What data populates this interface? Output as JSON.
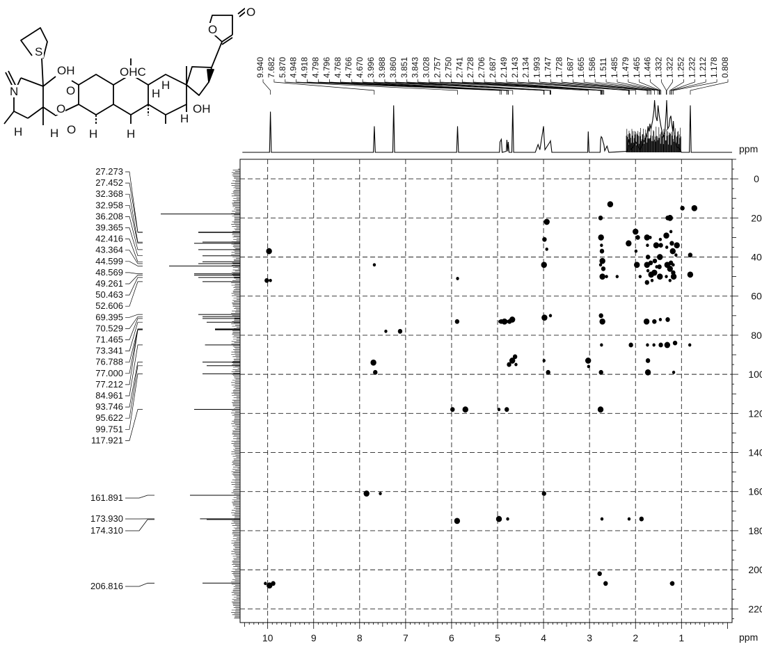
{
  "structure": {
    "labels": [
      "O",
      "O",
      "S",
      "N",
      "OH",
      "O",
      "OHC",
      "H",
      "O",
      "O",
      "H",
      "H",
      "H",
      "H",
      "H",
      "OH",
      "H"
    ]
  },
  "chart_data": {
    "type": "scatter",
    "title": "",
    "xlabel": "ppm",
    "ylabel": "ppm",
    "x_axis": {
      "range": [
        10.6,
        -0.1
      ],
      "ticks": [
        10,
        9,
        8,
        7,
        6,
        5,
        4,
        3,
        2,
        1
      ],
      "unit": "ppm"
    },
    "y_axis": {
      "range": [
        -10,
        227
      ],
      "ticks": [
        0,
        20,
        40,
        60,
        80,
        100,
        120,
        140,
        160,
        180,
        200,
        220
      ],
      "unit": "ppm"
    },
    "grid": "dashed",
    "h1_peak_labels": [
      "9.940",
      "7.682",
      "5.870",
      "4.948",
      "4.918",
      "4.798",
      "4.796",
      "4.768",
      "4.766",
      "4.670",
      "3.996",
      "3.988",
      "3.860",
      "3.851",
      "3.843",
      "3.028",
      "2.757",
      "2.750",
      "2.741",
      "2.728",
      "2.706",
      "2.687",
      "2.149",
      "2.143",
      "2.134",
      "1.993",
      "1.747",
      "1.728",
      "1.687",
      "1.665",
      "1.586",
      "1.511",
      "1.485",
      "1.479",
      "1.465",
      "1.446",
      "1.332",
      "1.322",
      "1.252",
      "1.232",
      "1.212",
      "1.178",
      "0.808"
    ],
    "c13_peak_labels": [
      "27.273",
      "27.452",
      "32.368",
      "32.958",
      "36.208",
      "39.365",
      "42.416",
      "43.364",
      "44.599",
      "48.569",
      "49.261",
      "50.463",
      "52.606",
      "69.395",
      "70.529",
      "71.465",
      "73.341",
      "76.788",
      "77.000",
      "77.212",
      "84.961",
      "93.746",
      "95.622",
      "99.751",
      "117.921",
      "161.891",
      "173.930",
      "174.310",
      "206.816"
    ],
    "h1_trace": [
      [
        10.55,
        0
      ],
      [
        9.96,
        0
      ],
      [
        9.94,
        0.78
      ],
      [
        9.92,
        0
      ],
      [
        7.7,
        0
      ],
      [
        7.68,
        0.5
      ],
      [
        7.66,
        0
      ],
      [
        7.28,
        0
      ],
      [
        7.26,
        0.9
      ],
      [
        7.24,
        0
      ],
      [
        5.89,
        0
      ],
      [
        5.87,
        0.5
      ],
      [
        5.85,
        0
      ],
      [
        4.96,
        0
      ],
      [
        4.948,
        0.2
      ],
      [
        4.918,
        0.25
      ],
      [
        4.9,
        0
      ],
      [
        4.81,
        0.02
      ],
      [
        4.797,
        0.24
      ],
      [
        4.78,
        0.02
      ],
      [
        4.767,
        0.2
      ],
      [
        4.75,
        0
      ],
      [
        4.69,
        0
      ],
      [
        4.67,
        0.9
      ],
      [
        4.65,
        0
      ],
      [
        4.18,
        0
      ],
      [
        4.12,
        0.15
      ],
      [
        4.08,
        0.05
      ],
      [
        4.0,
        0.5
      ],
      [
        3.99,
        0.3
      ],
      [
        3.97,
        0.05
      ],
      [
        3.86,
        0.2
      ],
      [
        3.85,
        0.22
      ],
      [
        3.84,
        0.15
      ],
      [
        3.82,
        0
      ],
      [
        3.04,
        0
      ],
      [
        3.028,
        0.4
      ],
      [
        3.01,
        0
      ],
      [
        2.77,
        0
      ],
      [
        2.757,
        0.25
      ],
      [
        2.745,
        0.3
      ],
      [
        2.728,
        0.28
      ],
      [
        2.706,
        0.2
      ],
      [
        2.687,
        0.15
      ],
      [
        2.67,
        0.03
      ],
      [
        2.62,
        0.12
      ],
      [
        2.58,
        0
      ],
      [
        2.18,
        0.02
      ],
      [
        2.149,
        0.25
      ],
      [
        2.134,
        0.2
      ],
      [
        2.1,
        0.05
      ],
      [
        2.05,
        0.1
      ],
      [
        1.993,
        0.2
      ],
      [
        1.95,
        0.12
      ],
      [
        1.9,
        0.05
      ],
      [
        1.85,
        0.15
      ],
      [
        1.8,
        0.25
      ],
      [
        1.76,
        0.3
      ],
      [
        1.747,
        0.35
      ],
      [
        1.728,
        0.5
      ],
      [
        1.7,
        0.4
      ],
      [
        1.687,
        0.55
      ],
      [
        1.665,
        0.45
      ],
      [
        1.63,
        0.6
      ],
      [
        1.6,
        0.8
      ],
      [
        1.586,
        1.0
      ],
      [
        1.56,
        0.7
      ],
      [
        1.53,
        0.6
      ],
      [
        1.511,
        0.9
      ],
      [
        1.485,
        0.7
      ],
      [
        1.465,
        0.6
      ],
      [
        1.446,
        0.5
      ],
      [
        1.4,
        0.3
      ],
      [
        1.36,
        0.4
      ],
      [
        1.332,
        0.8
      ],
      [
        1.322,
        1.0
      ],
      [
        1.3,
        0.45
      ],
      [
        1.27,
        0.5
      ],
      [
        1.252,
        0.65
      ],
      [
        1.232,
        0.7
      ],
      [
        1.212,
        0.55
      ],
      [
        1.19,
        0.4
      ],
      [
        1.178,
        0.6
      ],
      [
        1.15,
        0.25
      ],
      [
        1.1,
        0.1
      ],
      [
        1.05,
        0.08
      ],
      [
        1.0,
        0
      ],
      [
        0.83,
        0
      ],
      [
        0.808,
        0.9
      ],
      [
        0.79,
        0
      ],
      [
        -0.1,
        0
      ]
    ],
    "c13_peaks": [
      [
        206.816,
        0.45
      ],
      [
        174.31,
        0.4
      ],
      [
        173.93,
        0.48
      ],
      [
        161.891,
        0.6
      ],
      [
        117.921,
        0.55
      ],
      [
        99.751,
        0.45
      ],
      [
        95.622,
        0.4
      ],
      [
        93.746,
        0.45
      ],
      [
        84.961,
        0.42
      ],
      [
        77.212,
        0.3
      ],
      [
        77.0,
        0.3
      ],
      [
        76.788,
        0.3
      ],
      [
        73.341,
        0.4
      ],
      [
        71.465,
        0.45
      ],
      [
        70.529,
        0.45
      ],
      [
        69.395,
        0.5
      ],
      [
        52.606,
        0.45
      ],
      [
        50.463,
        0.5
      ],
      [
        49.261,
        0.55
      ],
      [
        48.569,
        0.55
      ],
      [
        44.599,
        0.85
      ],
      [
        43.364,
        0.5
      ],
      [
        42.416,
        0.45
      ],
      [
        39.365,
        0.45
      ],
      [
        36.208,
        0.5
      ],
      [
        32.958,
        0.55
      ],
      [
        32.368,
        0.45
      ],
      [
        27.452,
        0.5
      ],
      [
        27.273,
        0.5
      ],
      [
        18.0,
        0.95
      ]
    ],
    "series": [
      {
        "points": [
          [
            9.94,
            52
          ],
          [
            10.02,
            52
          ],
          [
            9.97,
            37
          ],
          [
            10.05,
            207
          ],
          [
            9.88,
            207
          ],
          [
            9.96,
            208
          ],
          [
            7.68,
            44
          ],
          [
            7.66,
            99
          ],
          [
            7.7,
            94
          ],
          [
            7.43,
            78
          ],
          [
            7.12,
            78
          ],
          [
            7.85,
            161
          ],
          [
            7.55,
            161
          ],
          [
            5.88,
            73
          ],
          [
            5.88,
            175
          ],
          [
            5.87,
            51
          ],
          [
            5.98,
            118
          ],
          [
            5.7,
            118
          ],
          [
            4.95,
            73
          ],
          [
            4.92,
            73
          ],
          [
            4.85,
            73
          ],
          [
            4.8,
            73
          ],
          [
            4.74,
            73
          ],
          [
            4.68,
            72
          ],
          [
            4.97,
            118
          ],
          [
            4.8,
            118
          ],
          [
            4.97,
            174
          ],
          [
            4.78,
            174
          ],
          [
            4.75,
            95
          ],
          [
            4.68,
            93
          ],
          [
            4.6,
            95
          ],
          [
            4.62,
            91
          ],
          [
            3.99,
            44
          ],
          [
            3.99,
            93
          ],
          [
            3.99,
            161
          ],
          [
            3.93,
            22
          ],
          [
            3.93,
            36
          ],
          [
            3.98,
            31
          ],
          [
            3.98,
            71
          ],
          [
            3.85,
            70
          ],
          [
            3.9,
            99
          ],
          [
            3.03,
            93
          ],
          [
            3.02,
            96
          ],
          [
            2.76,
            20
          ],
          [
            2.75,
            30
          ],
          [
            2.74,
            34
          ],
          [
            2.73,
            37
          ],
          [
            2.72,
            42
          ],
          [
            2.76,
            44
          ],
          [
            2.7,
            46
          ],
          [
            2.72,
            50
          ],
          [
            2.63,
            50
          ],
          [
            2.75,
            70
          ],
          [
            2.72,
            73
          ],
          [
            2.74,
            85
          ],
          [
            2.75,
            99
          ],
          [
            2.76,
            118
          ],
          [
            2.73,
            174
          ],
          [
            2.65,
            207
          ],
          [
            2.55,
            13
          ],
          [
            2.4,
            50
          ],
          [
            2.78,
            202
          ],
          [
            2.15,
            33
          ],
          [
            2.14,
            174
          ],
          [
            2.1,
            85
          ],
          [
            2.0,
            27
          ],
          [
            1.99,
            37
          ],
          [
            1.95,
            30
          ],
          [
            1.97,
            44
          ],
          [
            1.9,
            50
          ],
          [
            1.87,
            174
          ],
          [
            1.75,
            30
          ],
          [
            1.74,
            34
          ],
          [
            1.73,
            40
          ],
          [
            1.75,
            44
          ],
          [
            1.73,
            47
          ],
          [
            1.75,
            53
          ],
          [
            1.76,
            73
          ],
          [
            1.74,
            85
          ],
          [
            1.73,
            93
          ],
          [
            1.73,
            99
          ],
          [
            1.68,
            30
          ],
          [
            1.67,
            43
          ],
          [
            1.66,
            49
          ],
          [
            1.64,
            52
          ],
          [
            1.58,
            42
          ],
          [
            1.59,
            48
          ],
          [
            1.6,
            85
          ],
          [
            1.59,
            73
          ],
          [
            1.55,
            34
          ],
          [
            1.54,
            45
          ],
          [
            1.48,
            45
          ],
          [
            1.47,
            40
          ],
          [
            1.46,
            31
          ],
          [
            1.45,
            34
          ],
          [
            1.47,
            50
          ],
          [
            1.46,
            72
          ],
          [
            1.45,
            85
          ],
          [
            1.33,
            29
          ],
          [
            1.32,
            35
          ],
          [
            1.3,
            20
          ],
          [
            1.31,
            44
          ],
          [
            1.33,
            50
          ],
          [
            1.3,
            72
          ],
          [
            1.31,
            85
          ],
          [
            1.22,
            207
          ],
          [
            1.2,
            207
          ],
          [
            1.25,
            20
          ],
          [
            1.23,
            27
          ],
          [
            1.23,
            43
          ],
          [
            1.25,
            46
          ],
          [
            1.25,
            52
          ],
          [
            1.21,
            33
          ],
          [
            1.19,
            37
          ],
          [
            1.18,
            44
          ],
          [
            1.18,
            48
          ],
          [
            1.17,
            50
          ],
          [
            1.17,
            99
          ],
          [
            1.14,
            84
          ],
          [
            1.1,
            34
          ],
          [
            1.12,
            39
          ],
          [
            0.81,
            39
          ],
          [
            0.81,
            49
          ],
          [
            0.82,
            85
          ],
          [
            0.98,
            15
          ],
          [
            0.72,
            15
          ]
        ]
      }
    ]
  }
}
